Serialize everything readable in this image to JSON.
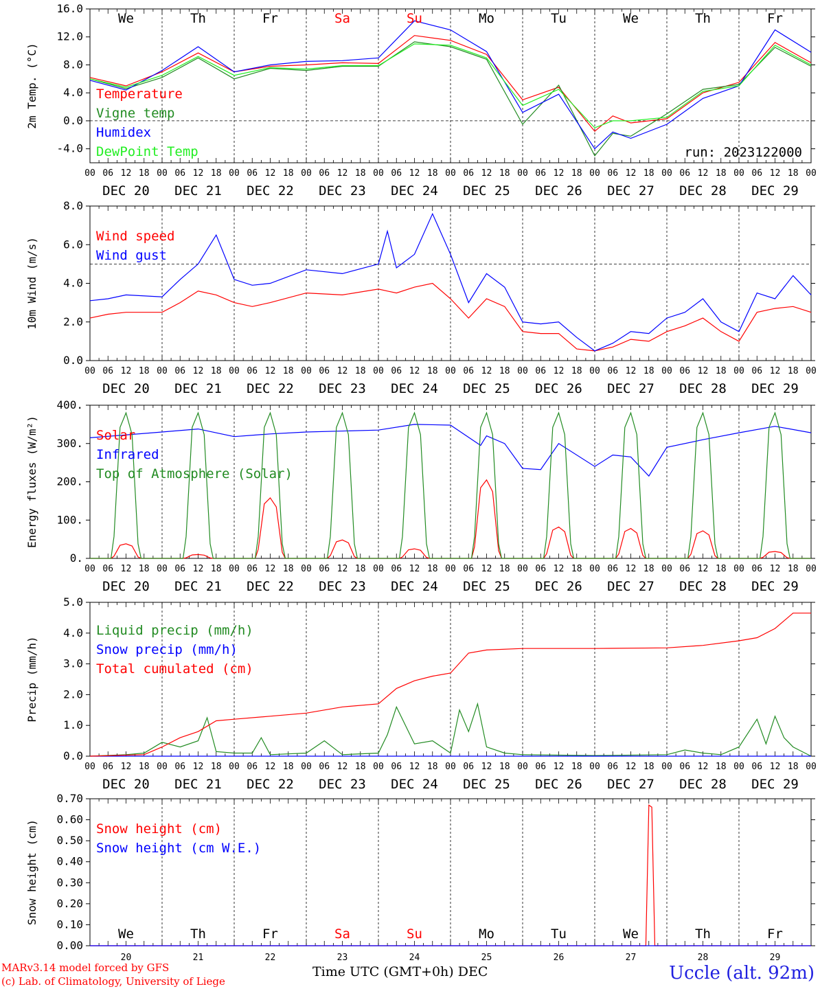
{
  "run_label": "run: 2023122000",
  "footer": {
    "credit_line1": "MARv3.14 model forced by GFS",
    "credit_line2": "(c) Lab. of Climatology, University of Liege",
    "axis_label": "Time UTC (GMT+0h)",
    "month": "DEC",
    "station": "Uccle (alt. 92m)"
  },
  "days": {
    "names": [
      "We",
      "Th",
      "Fr",
      "Sa",
      "Su",
      "Mo",
      "Tu",
      "We",
      "Th",
      "Fr"
    ],
    "weekend_color": "#ff0000",
    "dates": [
      "DEC 20",
      "DEC 21",
      "DEC 22",
      "DEC 23",
      "DEC 24",
      "DEC 25",
      "DEC 26",
      "DEC 27",
      "DEC 28",
      "DEC 29"
    ],
    "numbers": [
      "20",
      "21",
      "22",
      "23",
      "24",
      "25",
      "26",
      "27",
      "28",
      "29"
    ],
    "hour_ticks": [
      "00",
      "06",
      "12",
      "18"
    ],
    "final_tick": "00"
  },
  "chart_data": [
    {
      "type": "line",
      "ylabel": "2m Temp. (°C)",
      "ylim": [
        -6,
        16
      ],
      "yticks": [
        "16.0",
        "12.0",
        "8.0",
        "4.0",
        "0.0",
        "-4.0"
      ],
      "ytick_values": [
        16,
        12,
        8,
        4,
        0,
        -4
      ],
      "reference_line": 0,
      "x": [
        0,
        12,
        24,
        36,
        48,
        60,
        72,
        84,
        96,
        108,
        120,
        132,
        144,
        156,
        168,
        174,
        180,
        192,
        204,
        216,
        228,
        240
      ],
      "series": [
        {
          "name": "Temperature",
          "color": "#ff0000",
          "values": [
            6.2,
            5.0,
            7.0,
            9.7,
            7.0,
            7.8,
            8.0,
            8.3,
            8.2,
            12.2,
            11.5,
            9.5,
            3.0,
            4.8,
            -1.5,
            0.7,
            -0.3,
            0.3,
            4.0,
            5.5,
            11.2,
            8.3
          ]
        },
        {
          "name": "Vigne temp",
          "color": "#228b22",
          "values": [
            6.0,
            4.6,
            6.2,
            9.0,
            6.0,
            7.5,
            7.2,
            7.8,
            7.8,
            11.3,
            10.6,
            8.8,
            -0.5,
            5.1,
            -5.0,
            -1.8,
            -2.2,
            1.0,
            4.5,
            5.2,
            10.5,
            7.8
          ]
        },
        {
          "name": "Humidex",
          "color": "#0000ff",
          "values": [
            5.8,
            4.4,
            7.2,
            10.6,
            7.0,
            8.0,
            8.5,
            8.6,
            9.0,
            14.3,
            13.0,
            9.9,
            1.2,
            3.8,
            -4.0,
            -1.6,
            -2.5,
            -0.5,
            3.2,
            5.0,
            13.0,
            9.8
          ]
        },
        {
          "name": "DewPoint Temp",
          "color": "#22ee22",
          "values": [
            6.0,
            4.8,
            6.5,
            9.2,
            6.5,
            7.6,
            7.4,
            7.9,
            7.9,
            11.0,
            10.8,
            9.0,
            2.2,
            4.5,
            -1.0,
            0.0,
            0.0,
            0.5,
            4.2,
            5.0,
            10.8,
            8.0
          ]
        }
      ]
    },
    {
      "type": "line",
      "ylabel": "10m Wind (m/s)",
      "ylim": [
        0,
        8
      ],
      "yticks": [
        "8.0",
        "6.0",
        "4.0",
        "2.0",
        "0.0"
      ],
      "ytick_values": [
        8,
        6,
        4,
        2,
        0
      ],
      "reference_line": 5,
      "x": [
        0,
        6,
        12,
        24,
        30,
        36,
        42,
        48,
        54,
        60,
        72,
        84,
        96,
        99,
        102,
        108,
        114,
        120,
        126,
        132,
        138,
        144,
        150,
        156,
        162,
        168,
        174,
        180,
        186,
        192,
        198,
        204,
        210,
        216,
        222,
        228,
        234,
        240
      ],
      "series": [
        {
          "name": "Wind speed",
          "color": "#ff0000",
          "values": [
            2.2,
            2.4,
            2.5,
            2.5,
            3.0,
            3.6,
            3.4,
            3.0,
            2.8,
            3.0,
            3.5,
            3.4,
            3.7,
            3.6,
            3.5,
            3.8,
            4.0,
            3.2,
            2.2,
            3.2,
            2.8,
            1.5,
            1.4,
            1.4,
            0.6,
            0.5,
            0.7,
            1.1,
            1.0,
            1.5,
            1.8,
            2.2,
            1.5,
            1.0,
            2.5,
            2.7,
            2.8,
            2.5
          ]
        },
        {
          "name": "Wind gust",
          "color": "#0000ff",
          "values": [
            3.1,
            3.2,
            3.4,
            3.3,
            4.2,
            5.0,
            6.5,
            4.2,
            3.9,
            4.0,
            4.7,
            4.5,
            5.0,
            6.7,
            4.8,
            5.5,
            7.6,
            5.5,
            3.0,
            4.5,
            3.8,
            2.0,
            1.9,
            2.0,
            1.2,
            0.5,
            0.9,
            1.5,
            1.4,
            2.2,
            2.5,
            3.2,
            2.0,
            1.5,
            3.5,
            3.2,
            4.4,
            3.4
          ]
        }
      ]
    },
    {
      "type": "line",
      "ylabel": "Energy fluxes (W/m²)",
      "ylim": [
        0,
        400
      ],
      "yticks": [
        "400.",
        "300.",
        "200.",
        "100.",
        "0."
      ],
      "ytick_values": [
        400,
        300,
        200,
        100,
        0
      ],
      "x_daylight": {
        "sunrise_hour": 8,
        "sunset_hour": 16
      },
      "series": [
        {
          "name": "Solar",
          "color": "#ff0000",
          "daily_peak": [
            38,
            10,
            158,
            48,
            25,
            205,
            82,
            78,
            72,
            18
          ]
        },
        {
          "name": "Infrared",
          "color": "#0000ff",
          "x": [
            0,
            24,
            36,
            48,
            60,
            72,
            96,
            108,
            120,
            130,
            132,
            138,
            144,
            150,
            156,
            168,
            174,
            180,
            186,
            192,
            204,
            216,
            228,
            240
          ],
          "values": [
            315,
            330,
            338,
            318,
            325,
            330,
            335,
            350,
            348,
            295,
            320,
            300,
            235,
            232,
            300,
            240,
            270,
            265,
            215,
            290,
            310,
            328,
            345,
            328
          ]
        },
        {
          "name": "Top of Atmosphere (Solar)",
          "color": "#228b22",
          "daily_peak": [
            380,
            380,
            380,
            380,
            380,
            380,
            380,
            380,
            380,
            380
          ]
        }
      ]
    },
    {
      "type": "line",
      "ylabel": "Precip (mm/h)",
      "ylim": [
        0,
        5
      ],
      "yticks": [
        "5.0",
        "4.0",
        "3.0",
        "2.0",
        "1.0",
        "0.0"
      ],
      "ytick_values": [
        5,
        4,
        3,
        2,
        1,
        0
      ],
      "series": [
        {
          "name": "Liquid precip (mm/h)",
          "color": "#228b22",
          "x": [
            0,
            12,
            18,
            24,
            30,
            36,
            39,
            42,
            48,
            54,
            57,
            60,
            72,
            78,
            84,
            96,
            99,
            102,
            108,
            114,
            120,
            123,
            126,
            129,
            132,
            138,
            144,
            168,
            192,
            198,
            204,
            210,
            216,
            222,
            225,
            228,
            231,
            234,
            240
          ],
          "values": [
            0.0,
            0.05,
            0.1,
            0.45,
            0.3,
            0.5,
            1.25,
            0.15,
            0.1,
            0.1,
            0.6,
            0.05,
            0.1,
            0.5,
            0.05,
            0.1,
            0.7,
            1.6,
            0.4,
            0.5,
            0.1,
            1.5,
            0.8,
            1.7,
            0.3,
            0.1,
            0.05,
            0.02,
            0.05,
            0.2,
            0.1,
            0.05,
            0.3,
            1.2,
            0.4,
            1.3,
            0.6,
            0.3,
            0.0
          ]
        },
        {
          "name": "Snow precip (mm/h)",
          "color": "#0000ff",
          "x": [
            0,
            240
          ],
          "values": [
            0.0,
            0.0
          ]
        },
        {
          "name": "Total cumulated (cm)",
          "color": "#ff0000",
          "x": [
            0,
            18,
            24,
            30,
            36,
            42,
            48,
            60,
            72,
            84,
            96,
            102,
            108,
            114,
            120,
            126,
            132,
            144,
            168,
            192,
            204,
            216,
            222,
            228,
            234,
            240
          ],
          "values": [
            0.0,
            0.05,
            0.3,
            0.6,
            0.8,
            1.15,
            1.2,
            1.3,
            1.4,
            1.6,
            1.7,
            2.2,
            2.45,
            2.6,
            2.7,
            3.35,
            3.45,
            3.5,
            3.5,
            3.52,
            3.6,
            3.75,
            3.85,
            4.15,
            4.65,
            4.65
          ]
        }
      ]
    },
    {
      "type": "line",
      "ylabel": "Snow height (cm)",
      "ylim": [
        0,
        0.7
      ],
      "yticks": [
        "0.70",
        "0.60",
        "0.50",
        "0.40",
        "0.30",
        "0.20",
        "0.10",
        "0.00"
      ],
      "ytick_values": [
        0.7,
        0.6,
        0.5,
        0.4,
        0.3,
        0.2,
        0.1,
        0.0
      ],
      "series": [
        {
          "name": "Snow height (cm)",
          "color": "#ff0000",
          "x": [
            0,
            185,
            186,
            187,
            188,
            240
          ],
          "values": [
            0.0,
            0.0,
            0.67,
            0.66,
            0.0,
            0.0
          ]
        },
        {
          "name": "Snow height (cm W.E.)",
          "color": "#0000ff",
          "x": [
            0,
            240
          ],
          "values": [
            0.0,
            0.0
          ]
        }
      ]
    }
  ]
}
